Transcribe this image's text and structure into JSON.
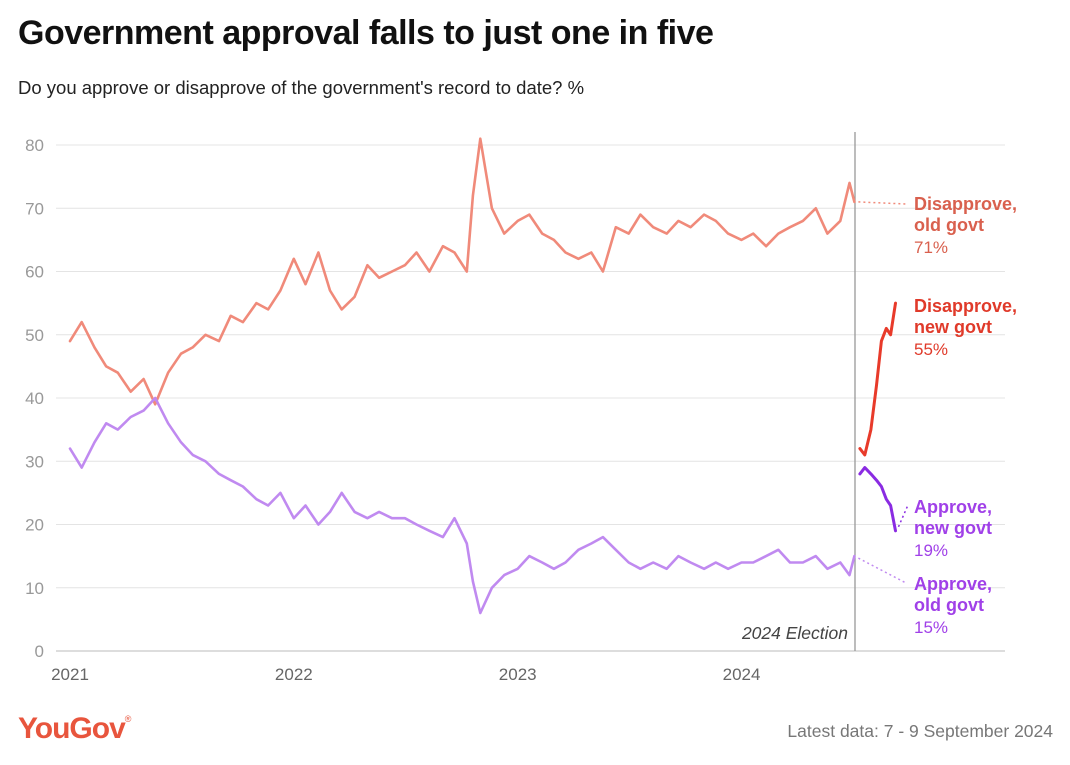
{
  "title": "Government approval falls to just one in five",
  "subtitle": "Do you approve or disapprove of the government's record to date? %",
  "brand": "YouGov",
  "footer_note": "Latest data: 7 - 9 September 2024",
  "colors": {
    "disapprove_old": "#f08a7a",
    "approve_old": "#c08af0",
    "disapprove_new": "#e83a2a",
    "approve_new": "#8a2be2",
    "label_disapprove_old": "#d9604e",
    "label_disapprove_new": "#e03a2a",
    "label_approve": "#a040e8",
    "grid": "#e4e4e4",
    "axis_text": "#999999"
  },
  "chart_data": {
    "type": "line",
    "title": "Government approval falls to just one in five",
    "subtitle": "Do you approve or disapprove of the government's record to date? %",
    "xlabel": "",
    "ylabel": "",
    "ylim": [
      0,
      80
    ],
    "yticks": [
      0,
      10,
      20,
      30,
      40,
      50,
      60,
      70,
      80
    ],
    "xlim": [
      "2021-01",
      "2024-09"
    ],
    "xticks": [
      "2021",
      "2022",
      "2023",
      "2024"
    ],
    "grid": true,
    "annotation": "2024 Election",
    "annotation_x": "2024-07-04",
    "series": [
      {
        "name": "Disapprove, old govt",
        "label_line1": "Disapprove,",
        "label_line2": "old govt",
        "value_label": "71%",
        "x": [
          "2021-01-01",
          "2021-01-20",
          "2021-02-10",
          "2021-03-01",
          "2021-03-20",
          "2021-04-10",
          "2021-05-01",
          "2021-05-20",
          "2021-06-10",
          "2021-07-01",
          "2021-07-20",
          "2021-08-10",
          "2021-09-01",
          "2021-09-20",
          "2021-10-10",
          "2021-11-01",
          "2021-11-20",
          "2021-12-10",
          "2022-01-01",
          "2022-01-20",
          "2022-02-10",
          "2022-03-01",
          "2022-03-20",
          "2022-04-10",
          "2022-05-01",
          "2022-05-20",
          "2022-06-10",
          "2022-07-01",
          "2022-07-20",
          "2022-08-10",
          "2022-09-01",
          "2022-09-20",
          "2022-10-10",
          "2022-10-20",
          "2022-11-01",
          "2022-11-20",
          "2022-12-10",
          "2023-01-01",
          "2023-01-20",
          "2023-02-10",
          "2023-03-01",
          "2023-03-20",
          "2023-04-10",
          "2023-05-01",
          "2023-05-20",
          "2023-06-10",
          "2023-07-01",
          "2023-07-20",
          "2023-08-10",
          "2023-09-01",
          "2023-09-20",
          "2023-10-10",
          "2023-11-01",
          "2023-11-20",
          "2023-12-10",
          "2024-01-01",
          "2024-01-20",
          "2024-02-10",
          "2024-03-01",
          "2024-03-20",
          "2024-04-10",
          "2024-05-01",
          "2024-05-20",
          "2024-06-10",
          "2024-06-25",
          "2024-07-03"
        ],
        "values": [
          49,
          52,
          48,
          45,
          44,
          41,
          43,
          39,
          44,
          47,
          48,
          50,
          49,
          53,
          52,
          55,
          54,
          57,
          62,
          58,
          63,
          57,
          54,
          56,
          61,
          59,
          60,
          61,
          63,
          60,
          64,
          63,
          60,
          72,
          81,
          70,
          66,
          68,
          69,
          66,
          65,
          63,
          62,
          63,
          60,
          67,
          66,
          69,
          67,
          66,
          68,
          67,
          69,
          68,
          66,
          65,
          66,
          64,
          66,
          67,
          68,
          70,
          66,
          68,
          74,
          71
        ]
      },
      {
        "name": "Approve, old govt",
        "label_line1": "Approve,",
        "label_line2": "old govt",
        "value_label": "15%",
        "x": [
          "2021-01-01",
          "2021-01-20",
          "2021-02-10",
          "2021-03-01",
          "2021-03-20",
          "2021-04-10",
          "2021-05-01",
          "2021-05-20",
          "2021-06-10",
          "2021-07-01",
          "2021-07-20",
          "2021-08-10",
          "2021-09-01",
          "2021-09-20",
          "2021-10-10",
          "2021-11-01",
          "2021-11-20",
          "2021-12-10",
          "2022-01-01",
          "2022-01-20",
          "2022-02-10",
          "2022-03-01",
          "2022-03-20",
          "2022-04-10",
          "2022-05-01",
          "2022-05-20",
          "2022-06-10",
          "2022-07-01",
          "2022-07-20",
          "2022-08-10",
          "2022-09-01",
          "2022-09-20",
          "2022-10-10",
          "2022-10-20",
          "2022-11-01",
          "2022-11-20",
          "2022-12-10",
          "2023-01-01",
          "2023-01-20",
          "2023-02-10",
          "2023-03-01",
          "2023-03-20",
          "2023-04-10",
          "2023-05-01",
          "2023-05-20",
          "2023-06-10",
          "2023-07-01",
          "2023-07-20",
          "2023-08-10",
          "2023-09-01",
          "2023-09-20",
          "2023-10-10",
          "2023-11-01",
          "2023-11-20",
          "2023-12-10",
          "2024-01-01",
          "2024-01-20",
          "2024-02-10",
          "2024-03-01",
          "2024-03-20",
          "2024-04-10",
          "2024-05-01",
          "2024-05-20",
          "2024-06-10",
          "2024-06-25",
          "2024-07-03"
        ],
        "values": [
          32,
          29,
          33,
          36,
          35,
          37,
          38,
          40,
          36,
          33,
          31,
          30,
          28,
          27,
          26,
          24,
          23,
          25,
          21,
          23,
          20,
          22,
          25,
          22,
          21,
          22,
          21,
          21,
          20,
          19,
          18,
          21,
          17,
          11,
          6,
          10,
          12,
          13,
          15,
          14,
          13,
          14,
          16,
          17,
          18,
          16,
          14,
          13,
          14,
          13,
          15,
          14,
          13,
          14,
          13,
          14,
          14,
          15,
          16,
          14,
          14,
          15,
          13,
          14,
          12,
          15
        ]
      },
      {
        "name": "Disapprove, new govt",
        "label_line1": "Disapprove,",
        "label_line2": "new govt",
        "value_label": "55%",
        "x": [
          "2024-07-12",
          "2024-07-20",
          "2024-07-30",
          "2024-08-08",
          "2024-08-16",
          "2024-08-24",
          "2024-08-31",
          "2024-09-08"
        ],
        "values": [
          32,
          31,
          35,
          42,
          49,
          51,
          50,
          55
        ]
      },
      {
        "name": "Approve, new govt",
        "label_line1": "Approve,",
        "label_line2": "new govt",
        "value_label": "19%",
        "x": [
          "2024-07-12",
          "2024-07-20",
          "2024-07-30",
          "2024-08-08",
          "2024-08-16",
          "2024-08-24",
          "2024-08-31",
          "2024-09-08"
        ],
        "values": [
          28,
          29,
          28,
          27,
          26,
          24,
          23,
          19
        ]
      }
    ]
  }
}
